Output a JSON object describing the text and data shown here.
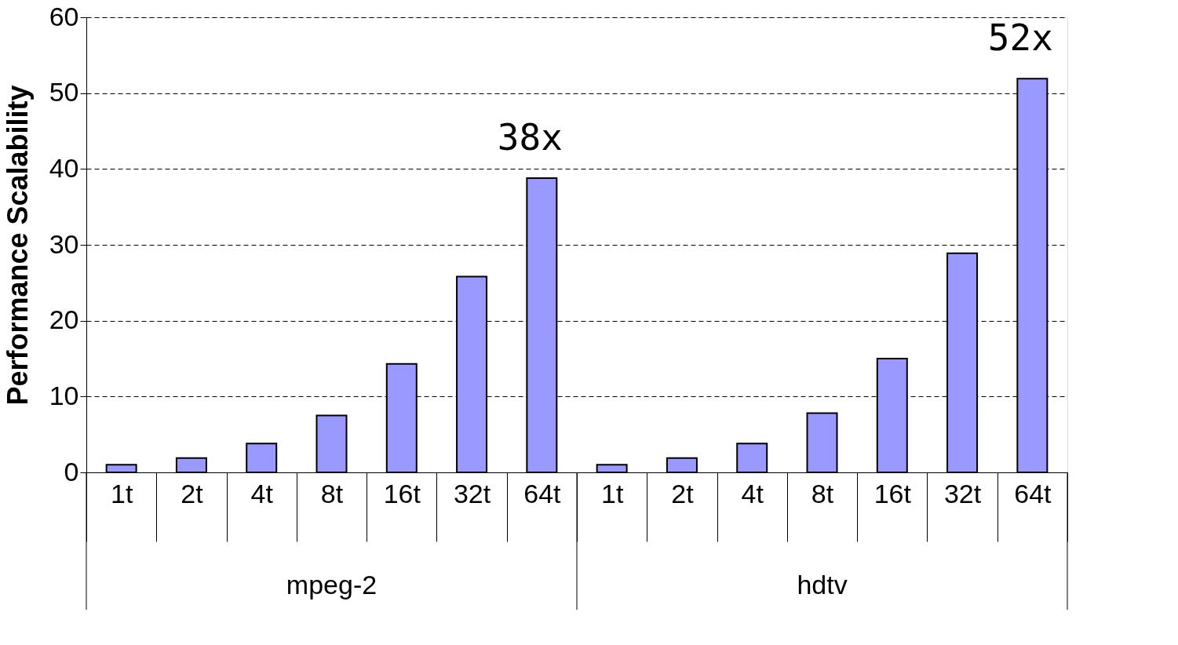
{
  "chart_data": {
    "type": "bar",
    "ylabel": "Performance Scalability",
    "categories": [
      "1t",
      "2t",
      "4t",
      "8t",
      "16t",
      "32t",
      "64t",
      "1t",
      "2t",
      "4t",
      "8t",
      "16t",
      "32t",
      "64t"
    ],
    "values": [
      1.0,
      1.9,
      3.8,
      7.5,
      14.3,
      25.8,
      38.8,
      1.0,
      1.9,
      3.8,
      7.8,
      15.0,
      28.9,
      51.9
    ],
    "color": "#9999ff",
    "ylim": [
      0,
      60
    ],
    "yticks": [
      0,
      10,
      20,
      30,
      40,
      50,
      60
    ],
    "grid": "y",
    "annotations": [
      "mpeg-2",
      "hdtv",
      "38x",
      "52x"
    ]
  }
}
